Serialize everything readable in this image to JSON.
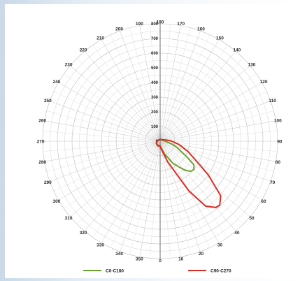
{
  "chart_data": {
    "type": "polar-line",
    "radial_ticks": [
      0,
      100,
      200,
      300,
      400,
      500,
      600,
      700,
      800
    ],
    "radial_max": 800,
    "angle_labels": [
      {
        "value": 0,
        "text": "0"
      },
      {
        "value": 10,
        "text": "10"
      },
      {
        "value": 20,
        "text": "20"
      },
      {
        "value": 30,
        "text": "30"
      },
      {
        "value": 40,
        "text": "40"
      },
      {
        "value": 50,
        "text": "50"
      },
      {
        "value": 60,
        "text": "60"
      },
      {
        "value": 70,
        "text": "70"
      },
      {
        "value": 80,
        "text": "80"
      },
      {
        "value": 90,
        "text": "90"
      },
      {
        "value": 100,
        "text": "100"
      },
      {
        "value": 110,
        "text": "110"
      },
      {
        "value": 120,
        "text": "120"
      },
      {
        "value": 130,
        "text": "130"
      },
      {
        "value": 140,
        "text": "140"
      },
      {
        "value": 150,
        "text": "150"
      },
      {
        "value": 160,
        "text": "160"
      },
      {
        "value": 170,
        "text": "170"
      },
      {
        "value": 180,
        "text": "180"
      },
      {
        "value": 190,
        "text": "190"
      },
      {
        "value": 200,
        "text": "200"
      },
      {
        "value": 210,
        "text": "210"
      },
      {
        "value": 220,
        "text": "220"
      },
      {
        "value": 230,
        "text": "230"
      },
      {
        "value": 240,
        "text": "240"
      },
      {
        "value": 250,
        "text": "250"
      },
      {
        "value": 260,
        "text": "260"
      },
      {
        "value": 270,
        "text": "270"
      },
      {
        "value": 280,
        "text": "280"
      },
      {
        "value": 290,
        "text": "290"
      },
      {
        "value": 300,
        "text": "300"
      },
      {
        "value": 310,
        "text": "310"
      },
      {
        "value": 320,
        "text": "320"
      },
      {
        "value": 330,
        "text": "330"
      },
      {
        "value": 340,
        "text": "340"
      },
      {
        "value": 350,
        "text": "350"
      }
    ],
    "legend_position": "bottom",
    "series": [
      {
        "name": "C0-C180",
        "color": "#6aa32c",
        "points": [
          [
            0,
            30
          ],
          [
            10,
            50
          ],
          [
            20,
            95
          ],
          [
            30,
            175
          ],
          [
            40,
            255
          ],
          [
            45,
            290
          ],
          [
            50,
            300
          ],
          [
            55,
            280
          ],
          [
            60,
            205
          ],
          [
            65,
            150
          ],
          [
            70,
            120
          ],
          [
            75,
            90
          ],
          [
            80,
            60
          ],
          [
            90,
            35
          ],
          [
            100,
            25
          ],
          [
            120,
            15
          ],
          [
            160,
            10
          ],
          [
            200,
            10
          ],
          [
            240,
            12
          ],
          [
            270,
            20
          ],
          [
            300,
            30
          ],
          [
            330,
            30
          ],
          [
            350,
            30
          ],
          [
            360,
            30
          ]
        ]
      },
      {
        "name": "C90-C270",
        "color": "#e02a24",
        "points": [
          [
            0,
            35
          ],
          [
            10,
            60
          ],
          [
            20,
            150
          ],
          [
            30,
            390
          ],
          [
            35,
            540
          ],
          [
            40,
            590
          ],
          [
            43,
            595
          ],
          [
            48,
            555
          ],
          [
            55,
            400
          ],
          [
            60,
            300
          ],
          [
            70,
            200
          ],
          [
            80,
            130
          ],
          [
            90,
            80
          ],
          [
            100,
            45
          ],
          [
            120,
            20
          ],
          [
            160,
            12
          ],
          [
            200,
            12
          ],
          [
            240,
            15
          ],
          [
            270,
            20
          ],
          [
            300,
            30
          ],
          [
            330,
            35
          ],
          [
            350,
            35
          ],
          [
            360,
            35
          ]
        ]
      }
    ]
  }
}
